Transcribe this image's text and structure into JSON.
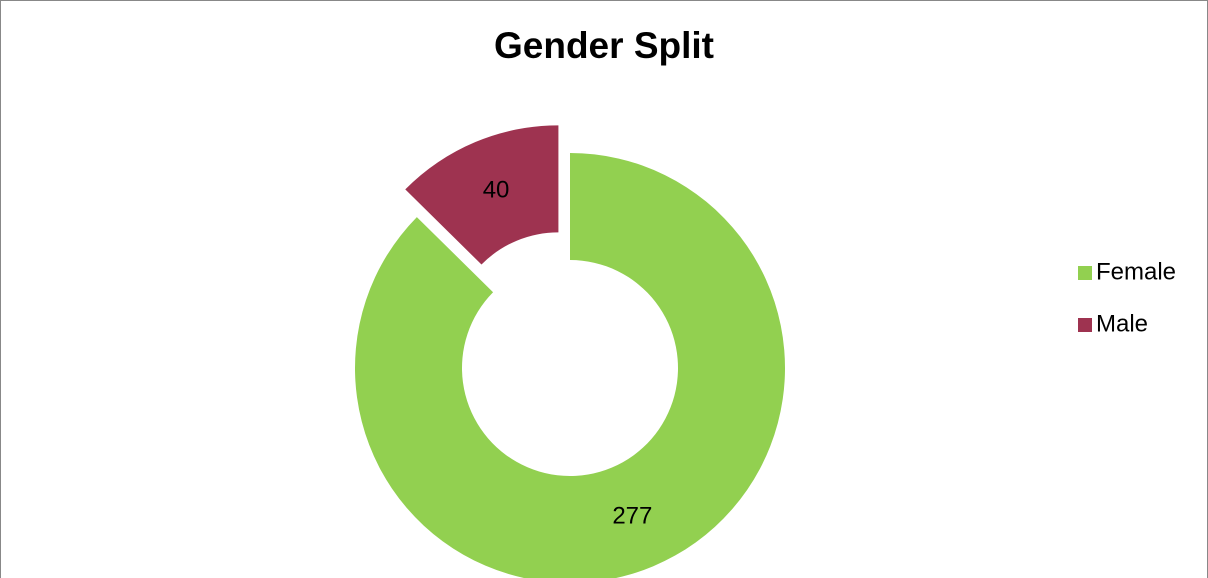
{
  "chart_data": {
    "type": "doughnut",
    "title": "Gender Split",
    "categories": [
      "Female",
      "Male"
    ],
    "values": [
      277,
      40
    ],
    "colors": [
      "#92d050",
      "#9e3350"
    ],
    "legend": "right"
  }
}
